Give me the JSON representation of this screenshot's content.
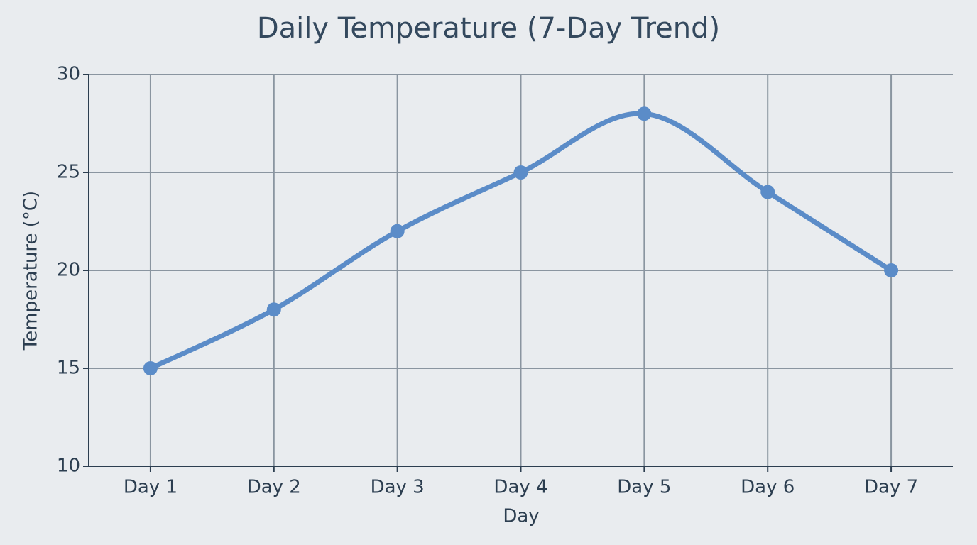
{
  "chart_data": {
    "type": "line",
    "title": "Daily Temperature (7-Day Trend)",
    "x_label": "Day",
    "y_label": "Temperature (°C)",
    "categories": [
      "Day 1",
      "Day 2",
      "Day 3",
      "Day 4",
      "Day 5",
      "Day 6",
      "Day 7"
    ],
    "values": [
      15,
      18,
      22,
      25,
      28,
      24,
      20
    ],
    "color": "#5b8cc8",
    "ylim": [
      10,
      30
    ],
    "yticks": [
      10,
      15,
      20,
      25,
      30
    ],
    "grid": true
  }
}
